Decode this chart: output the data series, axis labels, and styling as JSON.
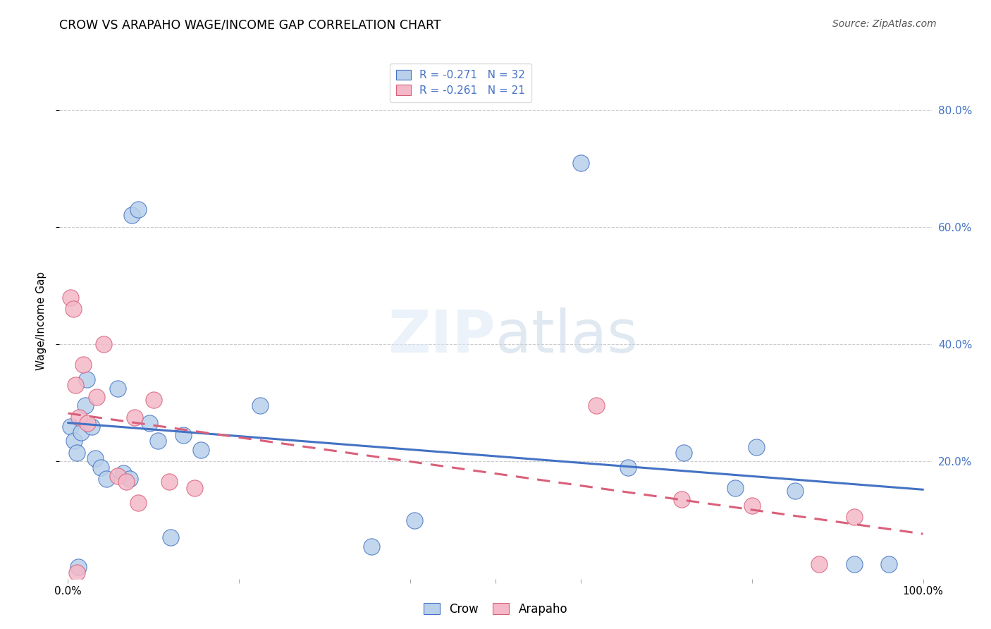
{
  "title": "CROW VS ARAPAHO WAGE/INCOME GAP CORRELATION CHART",
  "source": "Source: ZipAtlas.com",
  "ylabel": "Wage/Income Gap",
  "crow_R": -0.271,
  "crow_N": 32,
  "arapaho_R": -0.261,
  "arapaho_N": 21,
  "crow_color": "#b8d0ea",
  "crow_line_color": "#4472c4",
  "arapaho_color": "#f4b8c8",
  "arapaho_line_color": "#d9607a",
  "background": "#ffffff",
  "grid_color": "#cccccc",
  "crow_points_x": [
    0.003,
    0.007,
    0.01,
    0.012,
    0.015,
    0.02,
    0.022,
    0.028,
    0.032,
    0.038,
    0.045,
    0.058,
    0.065,
    0.072,
    0.075,
    0.082,
    0.095,
    0.105,
    0.12,
    0.135,
    0.155,
    0.225,
    0.355,
    0.405,
    0.6,
    0.655,
    0.72,
    0.78,
    0.805,
    0.85,
    0.92,
    0.96
  ],
  "crow_points_y": [
    0.26,
    0.235,
    0.215,
    0.02,
    0.25,
    0.295,
    0.34,
    0.26,
    0.205,
    0.19,
    0.17,
    0.325,
    0.18,
    0.17,
    0.62,
    0.63,
    0.265,
    0.235,
    0.07,
    0.245,
    0.22,
    0.295,
    0.055,
    0.1,
    0.71,
    0.19,
    0.215,
    0.155,
    0.225,
    0.15,
    0.025,
    0.025
  ],
  "arapaho_points_x": [
    0.003,
    0.006,
    0.009,
    0.01,
    0.013,
    0.018,
    0.023,
    0.033,
    0.042,
    0.058,
    0.068,
    0.078,
    0.082,
    0.1,
    0.118,
    0.148,
    0.618,
    0.718,
    0.8,
    0.878,
    0.92
  ],
  "arapaho_points_y": [
    0.48,
    0.46,
    0.33,
    0.01,
    0.275,
    0.365,
    0.265,
    0.31,
    0.4,
    0.175,
    0.165,
    0.275,
    0.13,
    0.305,
    0.165,
    0.155,
    0.295,
    0.135,
    0.125,
    0.025,
    0.105
  ],
  "ylim": [
    0.0,
    0.88
  ],
  "xlim": [
    -0.01,
    1.01
  ],
  "ytick_vals": [
    0.2,
    0.4,
    0.6,
    0.8
  ],
  "ytick_labels": [
    "20.0%",
    "40.0%",
    "60.0%",
    "80.0%"
  ],
  "xtick_vals": [
    0.0,
    0.2,
    0.4,
    0.5,
    0.6,
    0.8,
    1.0
  ],
  "xtick_labels_show": {
    "0.0": "0.0%",
    "1.0": "100.0%"
  }
}
